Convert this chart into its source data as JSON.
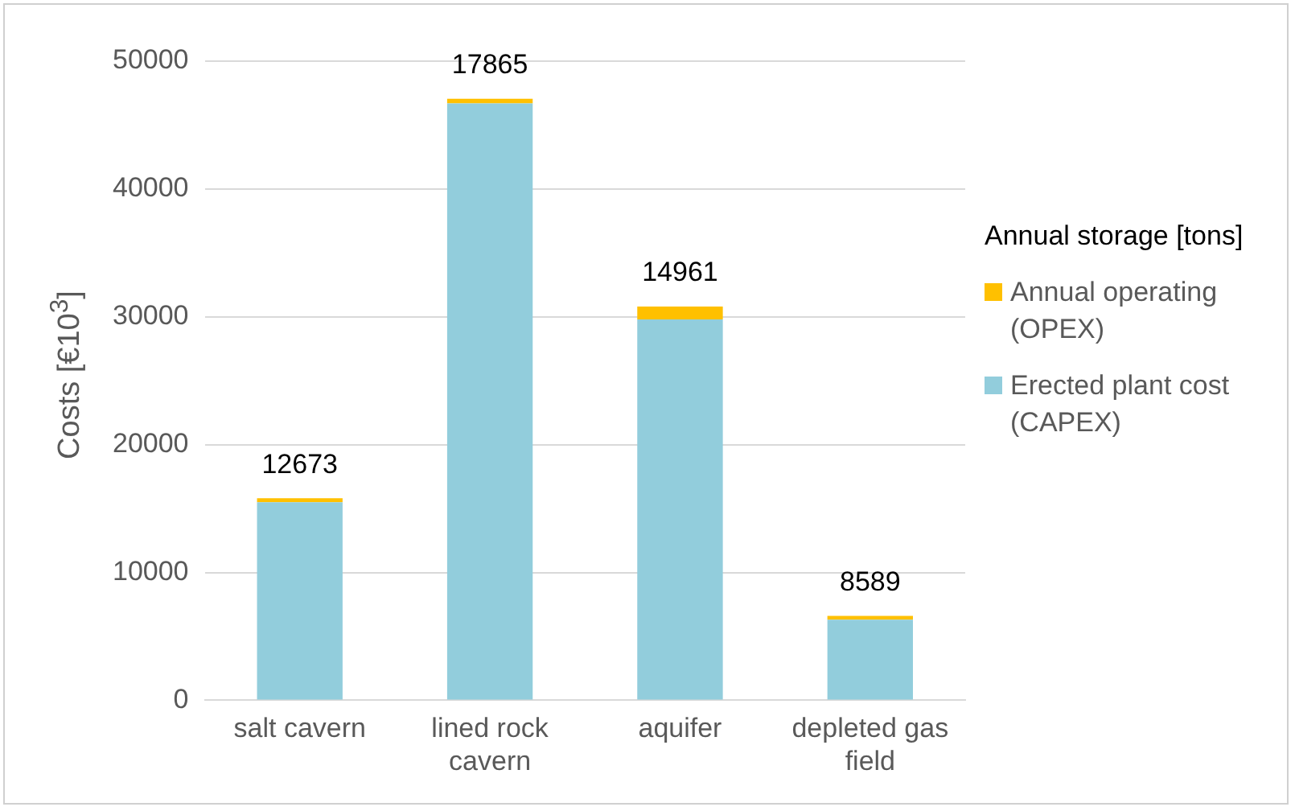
{
  "chart_data": {
    "type": "bar",
    "ylabel": "Costs [€10$^{3}$]",
    "categories": [
      "salt cavern",
      "lined rock cavern",
      "aquifer",
      "depleted gas field"
    ],
    "stacked": true,
    "ylim": [
      0,
      50000
    ],
    "yticks": [
      0,
      10000,
      20000,
      30000,
      40000,
      50000
    ],
    "grid": "y",
    "legend": "right",
    "series": [
      {
        "name": "Erected plant cost (CAPEX)",
        "color": "#92cddc",
        "values": [
          15500,
          46700,
          29800,
          6300
        ]
      },
      {
        "name": "Annual operating (OPEX)",
        "color": "#ffc000",
        "values": [
          300,
          350,
          1000,
          300
        ]
      },
      {
        "name": "Annual storage [tons]",
        "values": [
          null,
          null,
          null,
          null
        ],
        "value_labels": [
          "12673",
          "17865",
          "14961",
          "8589"
        ]
      }
    ]
  }
}
